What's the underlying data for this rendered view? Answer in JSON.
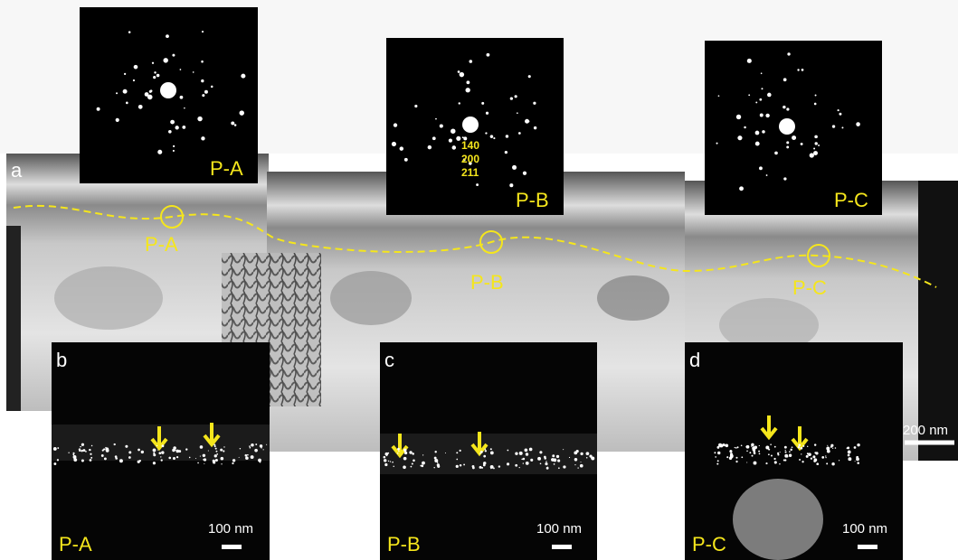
{
  "panel_a": {
    "label": "a",
    "sites": [
      "P-A",
      "P-B",
      "P-C"
    ],
    "scale_bar": "200 nm"
  },
  "diffraction": [
    {
      "label": "P-A"
    },
    {
      "label": "P-B",
      "indices": [
        "140",
        "200",
        "211"
      ]
    },
    {
      "label": "P-C"
    }
  ],
  "insets": [
    {
      "label": "b",
      "site": "P-A",
      "scale_bar": "100 nm"
    },
    {
      "label": "c",
      "site": "P-B",
      "scale_bar": "100 nm"
    },
    {
      "label": "d",
      "site": "P-C",
      "scale_bar": "100 nm"
    }
  ]
}
